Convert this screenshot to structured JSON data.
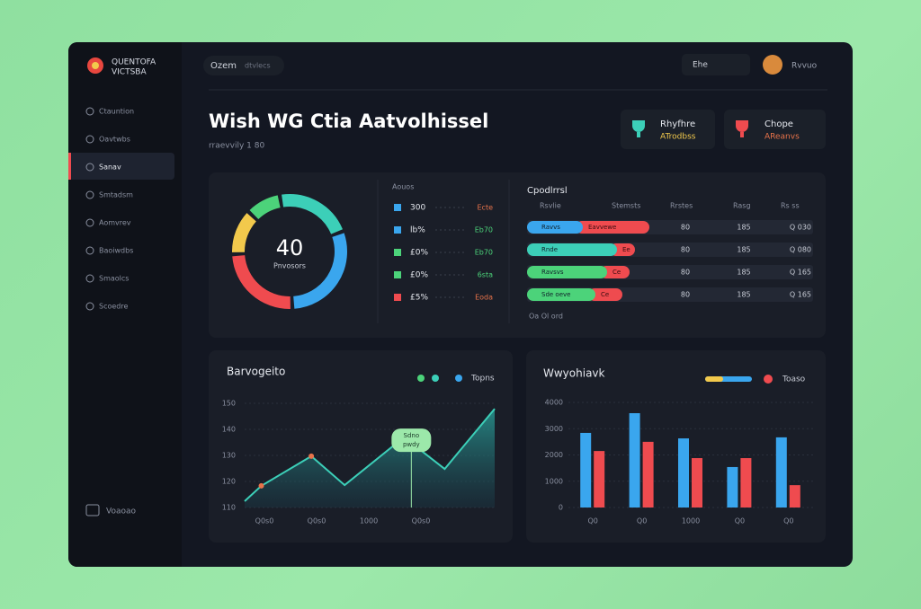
{
  "sidebar": {
    "logo": [
      "QUENTOFA",
      "VICTSBA"
    ],
    "items": [
      "Ctauntion",
      "Oavtwbs",
      "Sanav",
      "Smtadsm",
      "Aomvrev",
      "Baoiwdbs",
      "Smaolcs",
      "Scoedre"
    ],
    "footer": "Voaoao"
  },
  "header": {
    "search": "Ozem",
    "search_hint": "dtvlecs",
    "pill": "Ehe",
    "user": "Rvvuo",
    "title": "Wish WG Ctia Aatvolhissel",
    "subtitle": "rraevvily 1 80"
  },
  "cards": [
    {
      "title": "Rhyfhre",
      "sub": "ATrodbss"
    },
    {
      "title": "Chope",
      "sub": "AReanvs"
    }
  ],
  "donut": {
    "center": "40",
    "center_label": "Pnvosors",
    "values": [
      22,
      30,
      25,
      13,
      10
    ],
    "colors": [
      "#3ccfb8",
      "#3aa6ee",
      "#ef4b4f",
      "#f2c94c",
      "#4cd37a"
    ]
  },
  "legend": {
    "heading": "Aouos",
    "rows": [
      {
        "label": "300",
        "value": "Ecte",
        "color": "#3aa6ee",
        "text_color": "#e8734a"
      },
      {
        "label": "lb%",
        "value": "Eb70",
        "color": "#3aa6ee",
        "text_color": "#4cd37a"
      },
      {
        "label": "£0%",
        "value": "Eb70",
        "color": "#4cd37a",
        "text_color": "#4cd37a"
      },
      {
        "label": "£0%",
        "value": "6sta",
        "color": "#4cd37a",
        "text_color": "#4cd37a"
      },
      {
        "label": "£5%",
        "value": "Eoda",
        "color": "#ef4b4f",
        "text_color": "#e8734a"
      }
    ]
  },
  "table": {
    "heading": "Cpodlrrsl",
    "columns": [
      "Rsvlie",
      "Stemsts",
      "Rrstes",
      "Rasg",
      "Rs ss"
    ],
    "rows": [
      {
        "a": 62,
        "b": 74,
        "a_label": "Ravvs",
        "b_label": "Eavvewe",
        "a_color": "#3aa6ee",
        "c1": "80",
        "c2": "185",
        "c3": "Q 030"
      },
      {
        "a": 100,
        "b": 20,
        "a_label": "Rnde",
        "b_label": "Ee",
        "a_color": "#3ccfb8",
        "c1": "80",
        "c2": "185",
        "c3": "Q 080"
      },
      {
        "a": 89,
        "b": 25,
        "a_label": "Ravsvs",
        "b_label": "Ce",
        "a_color": "#4cd37a",
        "c1": "80",
        "c2": "185",
        "c3": "Q 165"
      },
      {
        "a": 76,
        "b": 30,
        "a_label": "Sde oeve",
        "b_label": "Ce",
        "a_color": "#4cd37a",
        "c1": "80",
        "c2": "185",
        "c3": "Q 165"
      }
    ],
    "footer": "Oa Ol  ord"
  },
  "linechart": {
    "title": "Barvogeito",
    "legend": "Topns",
    "callout": [
      "Sdno",
      "pwdy"
    ],
    "x": [
      0,
      1,
      4,
      6,
      9,
      10,
      12,
      15
    ],
    "values": [
      112.4,
      118.3,
      129.7,
      118.6,
      134.1,
      134.8,
      124.8,
      147.9
    ],
    "xlim": [
      0,
      15
    ],
    "ylim": [
      110,
      150
    ],
    "yticks": [
      110,
      120,
      130,
      140,
      150
    ],
    "x_labels": [
      "Q0s0",
      "Q0s0",
      "1000",
      "Q0s0"
    ],
    "color": "#3ccfb8"
  },
  "barchart": {
    "title": "Wwyohiavk",
    "legend": "Toaso",
    "categories": [
      "Q0",
      "Q0",
      "1000",
      "Q0",
      "Q0"
    ],
    "series": [
      {
        "color": "#3aa6ee",
        "values": [
          2840,
          3590,
          2630,
          1540,
          2670
        ]
      },
      {
        "color": "#ef4b4f",
        "values": [
          2150,
          2500,
          1880,
          1880,
          850
        ]
      }
    ],
    "ylim": [
      0,
      4000
    ],
    "yticks": [
      0,
      1000,
      2000,
      3000,
      4000
    ]
  }
}
